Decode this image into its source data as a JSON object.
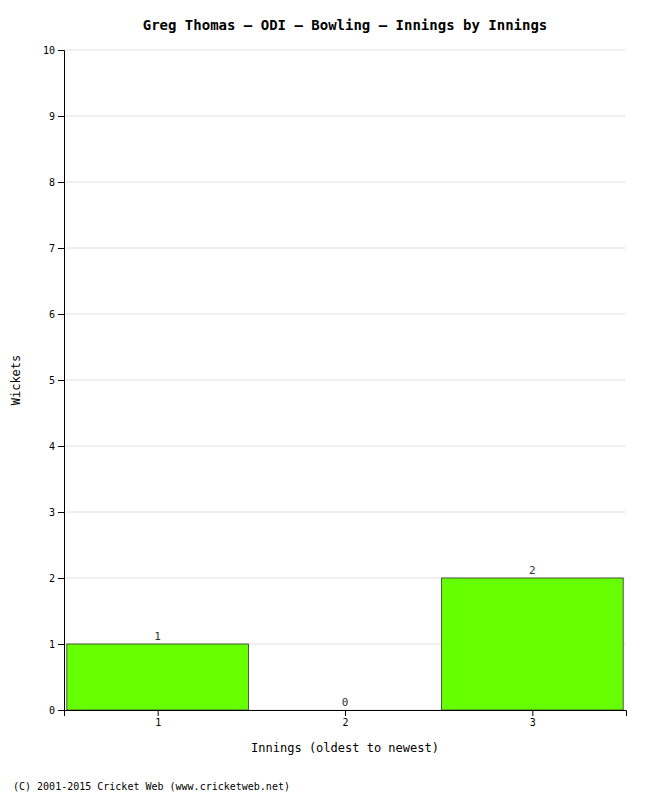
{
  "chart_data": {
    "type": "bar",
    "title": "Greg Thomas – ODI – Bowling – Innings by Innings",
    "x_label": "Innings (oldest to newest)",
    "y_label": "Wickets",
    "x": [
      1,
      2,
      3
    ],
    "values": [
      1,
      0,
      2
    ],
    "color": "#66ff00",
    "xlim": [
      0.5,
      3.5
    ],
    "xticks": [
      1,
      2,
      3
    ],
    "ylim": [
      0,
      10
    ],
    "yticks": [
      0,
      1,
      2,
      3,
      4,
      5,
      6,
      7,
      8,
      9,
      10
    ],
    "grid": true,
    "data_labels": true,
    "annotations": [
      "(C) 2001-2015 Cricket Web (www.cricketweb.net)"
    ]
  }
}
